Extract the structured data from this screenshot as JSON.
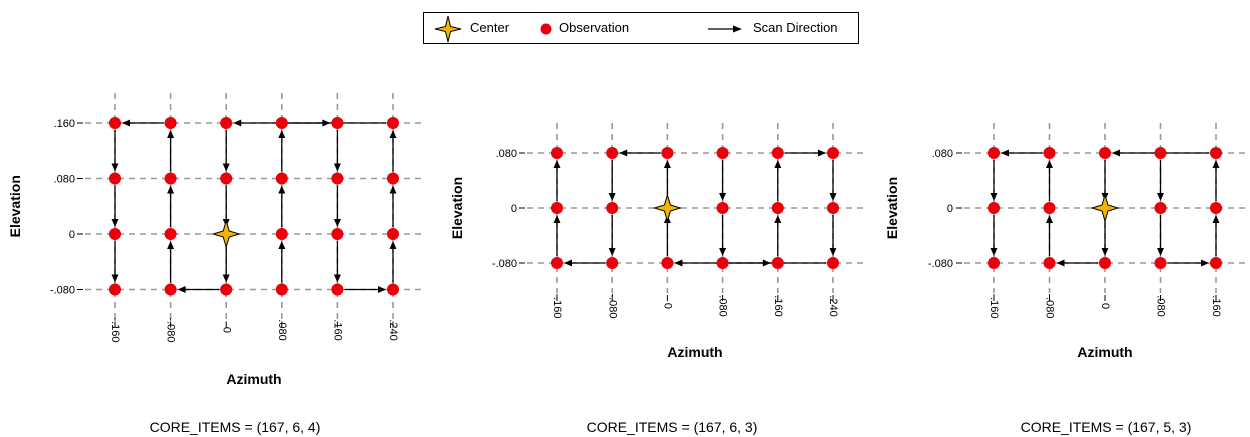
{
  "legend": {
    "center_label": "Center",
    "observation_label": "Observation",
    "scan_label": "Scan Direction"
  },
  "colors": {
    "observation": "#e8000b",
    "center_fill": "#f5b400",
    "grid": "#999999",
    "arrow": "#000000"
  },
  "chart_data": [
    {
      "type": "scatter",
      "caption": "CORE_ITEMS = (167, 6, 4)",
      "xlabel": "Azimuth",
      "ylabel": "Elevation",
      "x_ticks": [
        -0.16,
        -0.08,
        0,
        0.08,
        0.16,
        0.24
      ],
      "x_tick_labels": [
        "-.160",
        "-.080",
        "0",
        ".080",
        ".160",
        ".240"
      ],
      "y_ticks": [
        -0.08,
        0,
        0.08,
        0.16
      ],
      "y_tick_labels": [
        "-.080",
        "0",
        ".080",
        ".160"
      ],
      "center": [
        0,
        0
      ],
      "scan_path": [
        [
          0.08,
          -0.08
        ],
        [
          0.08,
          0
        ],
        [
          0.08,
          0.08
        ],
        [
          0.08,
          0.16
        ],
        [
          0.16,
          0.16
        ],
        [
          0.16,
          0.08
        ],
        [
          0.16,
          0
        ],
        [
          0.16,
          -0.08
        ],
        [
          0.24,
          -0.08
        ],
        [
          0.24,
          0
        ],
        [
          0.24,
          0.08
        ],
        [
          0.24,
          0.16
        ],
        [
          0,
          0.16
        ],
        [
          0,
          0.08
        ],
        [
          0,
          0
        ],
        [
          0,
          -0.08
        ],
        [
          -0.08,
          -0.08
        ],
        [
          -0.08,
          0
        ],
        [
          -0.08,
          0.08
        ],
        [
          -0.08,
          0.16
        ],
        [
          -0.16,
          0.16
        ],
        [
          -0.16,
          0.08
        ],
        [
          -0.16,
          0
        ],
        [
          -0.16,
          -0.08
        ]
      ]
    },
    {
      "type": "scatter",
      "caption": "CORE_ITEMS = (167, 6, 3)",
      "xlabel": "Azimuth",
      "ylabel": "Elevation",
      "x_ticks": [
        -0.16,
        -0.08,
        0,
        0.08,
        0.16,
        0.24
      ],
      "x_tick_labels": [
        "-.160",
        "-.080",
        "0",
        ".080",
        ".160",
        ".240"
      ],
      "y_ticks": [
        -0.08,
        0,
        0.08
      ],
      "y_tick_labels": [
        "-.080",
        "0",
        ".080"
      ],
      "center": [
        0,
        0
      ],
      "scan_path": [
        [
          0.08,
          0.08
        ],
        [
          0.08,
          0
        ],
        [
          0.08,
          -0.08
        ],
        [
          0.16,
          -0.08
        ],
        [
          0.16,
          0
        ],
        [
          0.16,
          0.08
        ],
        [
          0.24,
          0.08
        ],
        [
          0.24,
          0
        ],
        [
          0.24,
          -0.08
        ],
        [
          0,
          -0.08
        ],
        [
          0,
          0
        ],
        [
          0,
          0.08
        ],
        [
          -0.08,
          0.08
        ],
        [
          -0.08,
          0
        ],
        [
          -0.08,
          -0.08
        ],
        [
          -0.16,
          -0.08
        ],
        [
          -0.16,
          0
        ],
        [
          -0.16,
          0.08
        ]
      ]
    },
    {
      "type": "scatter",
      "caption": "CORE_ITEMS = (167, 5, 3)",
      "xlabel": "Azimuth",
      "ylabel": "Elevation",
      "x_ticks": [
        -0.16,
        -0.08,
        0,
        0.08,
        0.16
      ],
      "x_tick_labels": [
        "-.160",
        "-.080",
        "0",
        ".080",
        ".160"
      ],
      "y_ticks": [
        -0.08,
        0,
        0.08
      ],
      "y_tick_labels": [
        "-.080",
        "0",
        ".080"
      ],
      "center": [
        0,
        0
      ],
      "scan_path": [
        [
          0.08,
          0.08
        ],
        [
          0.08,
          0
        ],
        [
          0.08,
          -0.08
        ],
        [
          0.16,
          -0.08
        ],
        [
          0.16,
          0
        ],
        [
          0.16,
          0.08
        ],
        [
          0,
          0.08
        ],
        [
          0,
          0
        ],
        [
          0,
          -0.08
        ],
        [
          -0.08,
          -0.08
        ],
        [
          -0.08,
          0
        ],
        [
          -0.08,
          0.08
        ],
        [
          -0.16,
          0.08
        ],
        [
          -0.16,
          0
        ],
        [
          -0.16,
          -0.08
        ]
      ]
    }
  ]
}
